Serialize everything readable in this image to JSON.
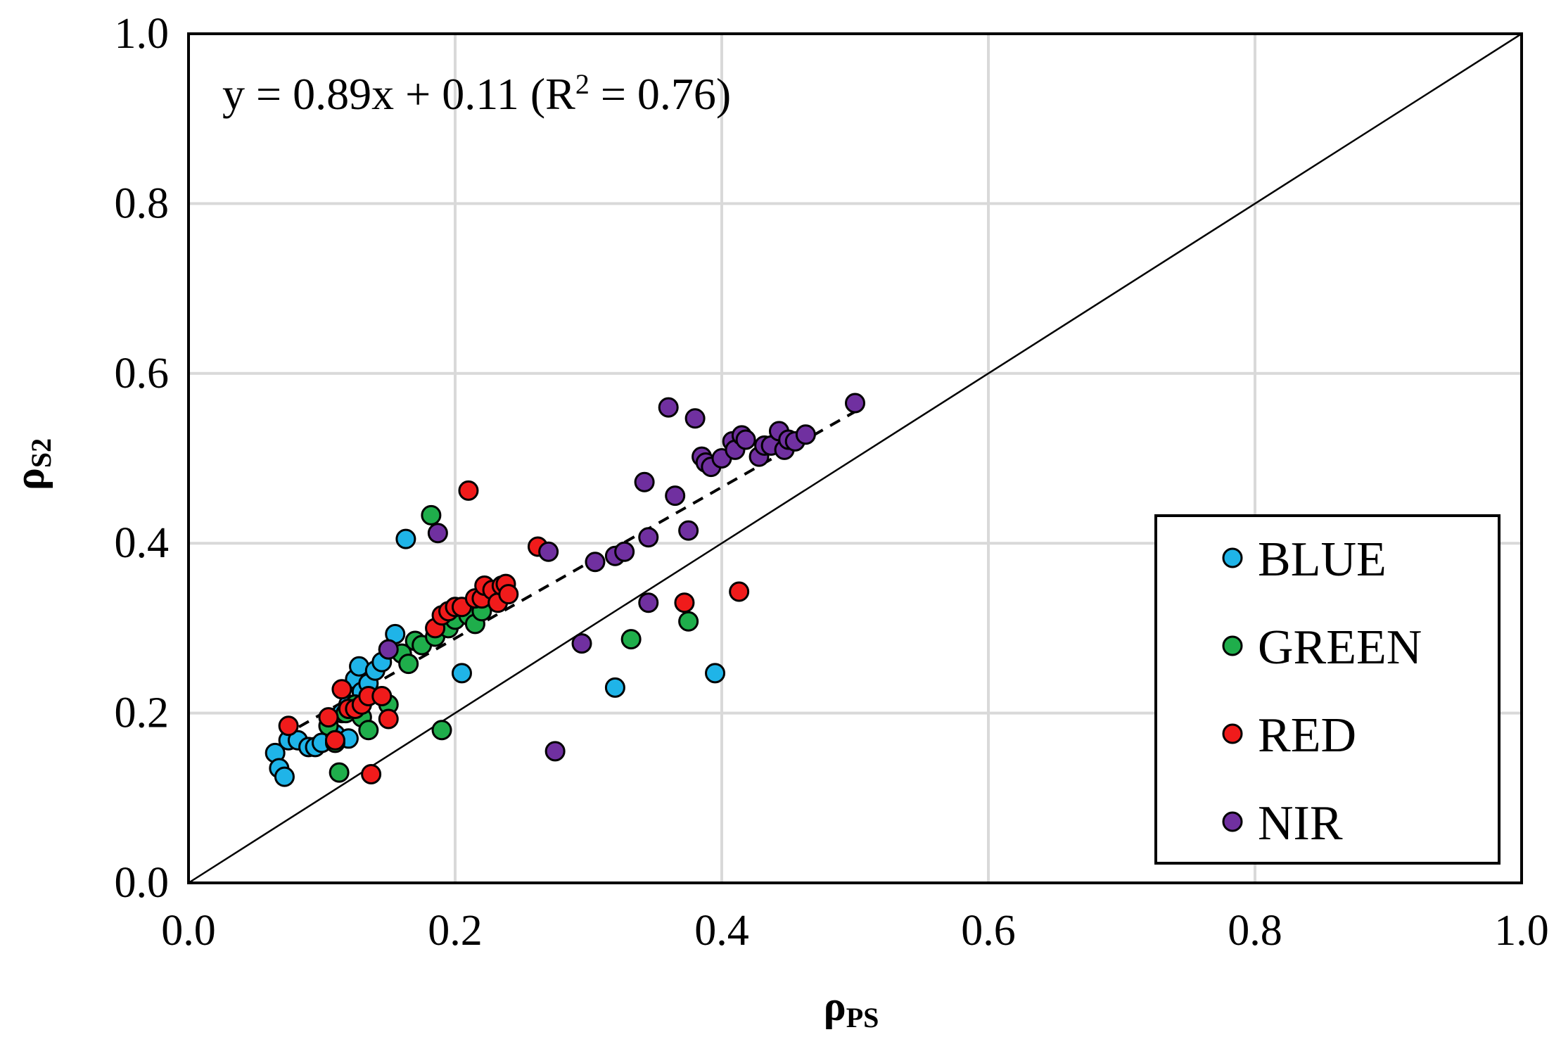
{
  "chart_data": {
    "type": "scatter",
    "title": "",
    "xlabel": {
      "base": "ρ",
      "sub": "PS"
    },
    "ylabel": {
      "base": "ρ",
      "sub": "S2"
    },
    "xlim": [
      0.0,
      1.0
    ],
    "ylim": [
      0.0,
      1.0
    ],
    "x_ticks": [
      "0.0",
      "0.2",
      "0.4",
      "0.6",
      "0.8",
      "1.0"
    ],
    "y_ticks": [
      "0.0",
      "0.2",
      "0.4",
      "0.6",
      "0.8",
      "1.0"
    ],
    "grid": true,
    "annotation": {
      "prefix": "y = 0.89x + 0.11 (R",
      "sup": "2",
      "suffix": " = 0.76)"
    },
    "fit_line": {
      "slope": 0.89,
      "intercept": 0.11,
      "x_range": [
        0.07,
        0.5
      ],
      "style": "dashed"
    },
    "reference_line": {
      "x": [
        0.0,
        1.0
      ],
      "y": [
        0.0,
        1.0
      ],
      "style": "solid"
    },
    "legend_position": "bottom-right",
    "series": [
      {
        "name": "BLUE",
        "color": "#1fb4e8",
        "points": [
          [
            0.065,
            0.153
          ],
          [
            0.068,
            0.135
          ],
          [
            0.072,
            0.125
          ],
          [
            0.075,
            0.168
          ],
          [
            0.082,
            0.168
          ],
          [
            0.09,
            0.16
          ],
          [
            0.095,
            0.16
          ],
          [
            0.1,
            0.165
          ],
          [
            0.11,
            0.175
          ],
          [
            0.115,
            0.2
          ],
          [
            0.12,
            0.21
          ],
          [
            0.125,
            0.24
          ],
          [
            0.128,
            0.255
          ],
          [
            0.13,
            0.225
          ],
          [
            0.135,
            0.235
          ],
          [
            0.14,
            0.25
          ],
          [
            0.145,
            0.26
          ],
          [
            0.15,
            0.275
          ],
          [
            0.155,
            0.293
          ],
          [
            0.163,
            0.405
          ],
          [
            0.12,
            0.17
          ],
          [
            0.205,
            0.247
          ],
          [
            0.32,
            0.23
          ],
          [
            0.395,
            0.247
          ]
        ]
      },
      {
        "name": "GREEN",
        "color": "#1fae4b",
        "points": [
          [
            0.105,
            0.185
          ],
          [
            0.11,
            0.165
          ],
          [
            0.113,
            0.13
          ],
          [
            0.118,
            0.2
          ],
          [
            0.125,
            0.21
          ],
          [
            0.13,
            0.195
          ],
          [
            0.135,
            0.18
          ],
          [
            0.15,
            0.21
          ],
          [
            0.16,
            0.27
          ],
          [
            0.165,
            0.258
          ],
          [
            0.17,
            0.285
          ],
          [
            0.175,
            0.28
          ],
          [
            0.182,
            0.433
          ],
          [
            0.185,
            0.29
          ],
          [
            0.19,
            0.18
          ],
          [
            0.195,
            0.3
          ],
          [
            0.2,
            0.31
          ],
          [
            0.21,
            0.315
          ],
          [
            0.215,
            0.305
          ],
          [
            0.22,
            0.32
          ],
          [
            0.332,
            0.287
          ],
          [
            0.375,
            0.308
          ]
        ]
      },
      {
        "name": "RED",
        "color": "#f01b1b",
        "points": [
          [
            0.075,
            0.185
          ],
          [
            0.105,
            0.195
          ],
          [
            0.11,
            0.168
          ],
          [
            0.115,
            0.228
          ],
          [
            0.12,
            0.205
          ],
          [
            0.125,
            0.205
          ],
          [
            0.13,
            0.21
          ],
          [
            0.135,
            0.22
          ],
          [
            0.137,
            0.128
          ],
          [
            0.145,
            0.22
          ],
          [
            0.15,
            0.193
          ],
          [
            0.185,
            0.3
          ],
          [
            0.19,
            0.315
          ],
          [
            0.195,
            0.32
          ],
          [
            0.2,
            0.325
          ],
          [
            0.205,
            0.325
          ],
          [
            0.21,
            0.462
          ],
          [
            0.215,
            0.335
          ],
          [
            0.22,
            0.335
          ],
          [
            0.222,
            0.35
          ],
          [
            0.228,
            0.345
          ],
          [
            0.232,
            0.33
          ],
          [
            0.235,
            0.35
          ],
          [
            0.238,
            0.352
          ],
          [
            0.24,
            0.34
          ],
          [
            0.262,
            0.396
          ],
          [
            0.372,
            0.33
          ],
          [
            0.413,
            0.343
          ]
        ]
      },
      {
        "name": "NIR",
        "color": "#7030a0",
        "points": [
          [
            0.15,
            0.275
          ],
          [
            0.187,
            0.412
          ],
          [
            0.27,
            0.39
          ],
          [
            0.275,
            0.155
          ],
          [
            0.295,
            0.282
          ],
          [
            0.305,
            0.378
          ],
          [
            0.32,
            0.385
          ],
          [
            0.327,
            0.39
          ],
          [
            0.342,
            0.472
          ],
          [
            0.345,
            0.407
          ],
          [
            0.345,
            0.33
          ],
          [
            0.36,
            0.56
          ],
          [
            0.365,
            0.456
          ],
          [
            0.375,
            0.415
          ],
          [
            0.38,
            0.547
          ],
          [
            0.385,
            0.502
          ],
          [
            0.388,
            0.495
          ],
          [
            0.392,
            0.49
          ],
          [
            0.4,
            0.5
          ],
          [
            0.408,
            0.52
          ],
          [
            0.41,
            0.51
          ],
          [
            0.415,
            0.527
          ],
          [
            0.418,
            0.522
          ],
          [
            0.428,
            0.502
          ],
          [
            0.432,
            0.515
          ],
          [
            0.437,
            0.515
          ],
          [
            0.443,
            0.532
          ],
          [
            0.447,
            0.51
          ],
          [
            0.45,
            0.522
          ],
          [
            0.455,
            0.52
          ],
          [
            0.463,
            0.528
          ],
          [
            0.5,
            0.565
          ]
        ]
      }
    ]
  }
}
